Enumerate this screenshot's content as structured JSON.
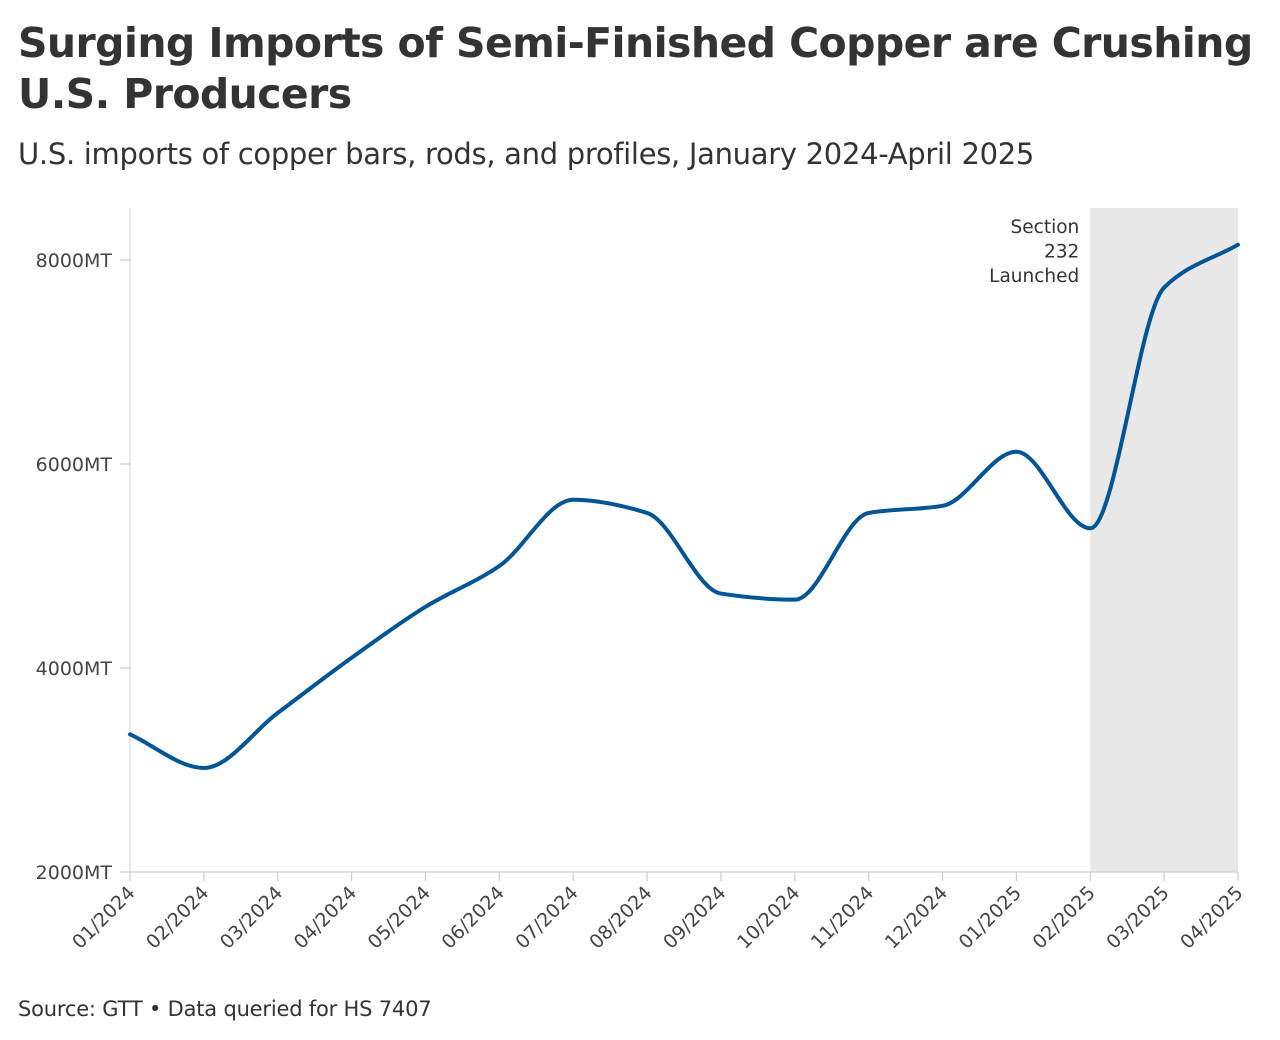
{
  "chart_data": {
    "type": "line",
    "title": "Surging Imports of Semi-Finished Copper are Crushing U.S. Producers",
    "subtitle": "U.S. imports of copper bars, rods, and profiles, January 2024-April 2025",
    "source": "Source: GTT • Data queried for HS 7407",
    "x": [
      "01/2024",
      "02/2024",
      "03/2024",
      "04/2024",
      "05/2024",
      "06/2024",
      "07/2024",
      "08/2024",
      "09/2024",
      "10/2024",
      "11/2024",
      "12/2024",
      "01/2025",
      "02/2025",
      "03/2025",
      "04/2025"
    ],
    "series": [
      {
        "values": [
          3350,
          3020,
          3560,
          4100,
          4600,
          5000,
          5650,
          5520,
          4730,
          4670,
          5520,
          5590,
          6120,
          5370,
          7730,
          8150
        ],
        "color": "#005596"
      }
    ],
    "ylim": [
      2000,
      8500
    ],
    "yticks": [
      {
        "value": 2000,
        "label": "2000MT"
      },
      {
        "value": 4000,
        "label": "4000MT"
      },
      {
        "value": 6000,
        "label": "6000MT"
      },
      {
        "value": 8000,
        "label": "8000MT"
      }
    ],
    "shaded_region": {
      "from": "02/2025",
      "to": "04/2025",
      "color": "#e8e8e8",
      "label": [
        "Section",
        "232",
        "Launched"
      ]
    },
    "grid": false,
    "legend": "none"
  }
}
